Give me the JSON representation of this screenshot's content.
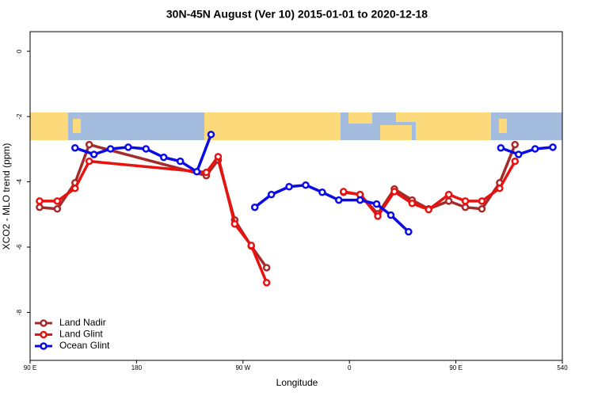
{
  "chart_data": {
    "type": "line",
    "title": "30N-45N August (Ver 10)   2015-01-01 to 2020-12-18",
    "x_label": "Longitude",
    "y_label": "XCO2 - MLO trend (ppm)",
    "xlim": [
      90,
      540
    ],
    "ylim": [
      -9.47,
      0.6
    ],
    "xticks": [
      {
        "value": 90,
        "label": "90 E"
      },
      180,
      {
        "value": 270,
        "label": "90 W"
      },
      {
        "value": 360,
        "label": "0"
      },
      {
        "value": 450,
        "label": "90 E"
      },
      540
    ],
    "yticks": [
      0,
      -2,
      -4,
      -6,
      -8
    ],
    "legend": "bottom-left",
    "series": [
      {
        "name": "Land Nadir",
        "color": "#a52a2a",
        "x": [
          98,
          113,
          128,
          140,
          239,
          249,
          263,
          277,
          290,
          null,
          355,
          369,
          384,
          398,
          413,
          427,
          444,
          458,
          472,
          487,
          500
        ],
        "values": [
          -4.78,
          -4.83,
          -4.03,
          -2.86,
          -3.81,
          -3.33,
          -5.17,
          -5.97,
          -6.63,
          null,
          -4.32,
          -4.39,
          -4.98,
          -4.22,
          -4.56,
          -4.83,
          -4.59,
          -4.78,
          -4.83,
          -4.03,
          -2.86
        ]
      },
      {
        "name": "Land Glint",
        "color": "#e8120f",
        "x": [
          98,
          113,
          128,
          140,
          239,
          249,
          263,
          277,
          290,
          null,
          355,
          369,
          384,
          398,
          413,
          427,
          444,
          458,
          472,
          487,
          500
        ],
        "values": [
          -4.59,
          -4.59,
          -4.2,
          -3.37,
          -3.71,
          -3.23,
          -5.29,
          -5.95,
          -7.09,
          null,
          -4.3,
          -4.39,
          -5.05,
          -4.3,
          -4.66,
          -4.85,
          -4.39,
          -4.59,
          -4.59,
          -4.2,
          -3.37
        ]
      },
      {
        "name": "Ocean Glint",
        "color": "#0a0ae6",
        "x": [
          128,
          144,
          158,
          173,
          188,
          203,
          217,
          231,
          243,
          null,
          280,
          294,
          309,
          323,
          337,
          351,
          369,
          383,
          395,
          410,
          null,
          488,
          503,
          517,
          532
        ],
        "values": [
          -2.96,
          -3.16,
          -2.99,
          -2.94,
          -2.99,
          -3.25,
          -3.37,
          -3.69,
          -2.55,
          null,
          -4.78,
          -4.39,
          -4.15,
          -4.1,
          -4.32,
          -4.56,
          -4.56,
          -4.68,
          -5.02,
          -5.53,
          null,
          -2.96,
          -3.16,
          -2.99,
          -2.94
        ]
      }
    ]
  }
}
